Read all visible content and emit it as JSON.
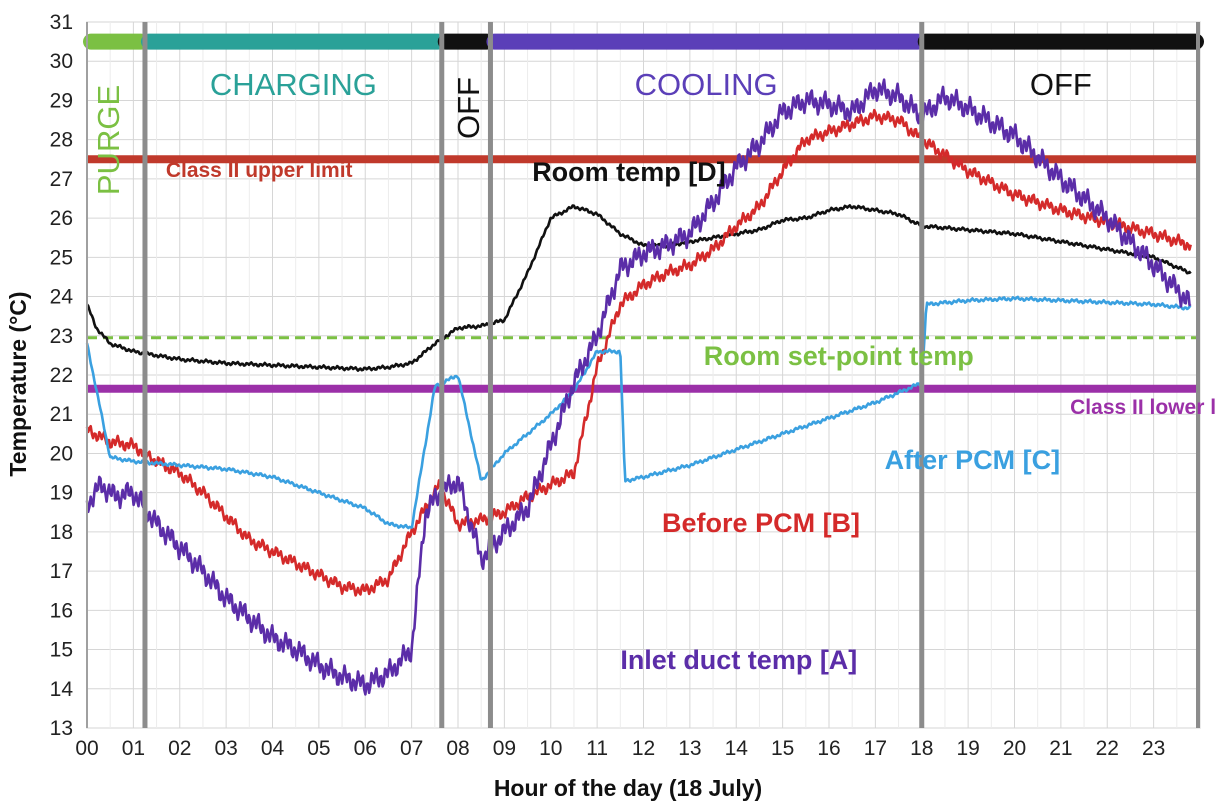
{
  "chart_data": {
    "type": "line",
    "title": "",
    "xlabel": "Hour of the day (18 July)",
    "ylabel": "Temperature (°C)",
    "xlim": [
      0,
      24
    ],
    "ylim": [
      13,
      31
    ],
    "x_tick_labels": [
      "00",
      "01",
      "02",
      "03",
      "04",
      "05",
      "06",
      "07",
      "08",
      "09",
      "10",
      "11",
      "12",
      "13",
      "14",
      "15",
      "16",
      "17",
      "18",
      "19",
      "20",
      "21",
      "22",
      "23"
    ],
    "y_ticks": [
      13,
      14,
      15,
      16,
      17,
      18,
      19,
      20,
      21,
      22,
      23,
      24,
      25,
      26,
      27,
      28,
      29,
      30,
      31
    ],
    "grid": true,
    "phases": [
      {
        "label": "PURGE",
        "start": 0.0,
        "end": 1.25,
        "color": "#7bc043",
        "vertical": true
      },
      {
        "label": "CHARGING",
        "start": 1.25,
        "end": 7.65,
        "color": "#2aa198",
        "vertical": false
      },
      {
        "label": "OFF",
        "start": 7.65,
        "end": 8.7,
        "color": "#111111",
        "vertical": true
      },
      {
        "label": "COOLING",
        "start": 8.7,
        "end": 18.0,
        "color": "#5b3fb8",
        "vertical": false
      },
      {
        "label": "OFF",
        "start": 18.0,
        "end": 24.0,
        "color": "#111111",
        "vertical": false
      }
    ],
    "phase_dividers": [
      1.25,
      7.65,
      8.7,
      18.0
    ],
    "reference_lines": [
      {
        "label": "Class II upper limit",
        "y": 27.5,
        "color": "#c0392b",
        "style": "solid"
      },
      {
        "label": "Room set-point temp",
        "y": 22.95,
        "color": "#7bc043",
        "style": "dashed"
      },
      {
        "label": "Class II lower limit",
        "y": 21.65,
        "color": "#9b30a8",
        "style": "solid"
      }
    ],
    "series": [
      {
        "name": "Room temp [D]",
        "color": "#111111",
        "x": [
          0,
          0.2,
          0.5,
          1,
          1.5,
          2,
          3,
          4,
          5,
          6,
          6.5,
          7,
          7.5,
          8,
          8.5,
          9,
          9.5,
          10,
          10.5,
          11,
          11.5,
          12,
          12.5,
          13,
          13.5,
          14,
          14.5,
          15,
          15.5,
          16,
          16.5,
          17,
          17.5,
          18,
          19,
          20,
          21,
          22,
          23,
          23.8
        ],
        "values": [
          23.8,
          23.2,
          22.8,
          22.6,
          22.5,
          22.4,
          22.3,
          22.25,
          22.2,
          22.15,
          22.2,
          22.3,
          22.8,
          23.2,
          23.25,
          23.4,
          24.6,
          26.0,
          26.3,
          26.1,
          25.6,
          25.3,
          25.3,
          25.4,
          25.5,
          25.6,
          25.7,
          25.95,
          26.0,
          26.2,
          26.3,
          26.2,
          26.1,
          25.8,
          25.7,
          25.6,
          25.4,
          25.2,
          25.0,
          24.6
        ]
      },
      {
        "name": "Before PCM [B]",
        "color": "#d42a2a",
        "x": [
          0,
          0.5,
          1,
          1.5,
          2,
          2.5,
          3,
          3.5,
          4,
          4.5,
          5,
          5.5,
          6,
          6.5,
          7,
          7.6,
          8,
          8.5,
          9,
          9.5,
          10,
          10.5,
          11,
          11.5,
          12,
          12.5,
          13,
          13.5,
          14,
          14.5,
          15,
          15.5,
          16,
          16.5,
          17,
          17.5,
          18,
          19,
          20,
          21,
          22,
          23,
          23.8
        ],
        "values": [
          20.6,
          20.3,
          20.2,
          19.8,
          19.5,
          19.0,
          18.4,
          17.8,
          17.5,
          17.2,
          16.9,
          16.6,
          16.5,
          16.8,
          18.0,
          19.2,
          18.2,
          18.3,
          18.5,
          18.9,
          19.2,
          19.5,
          22.2,
          23.8,
          24.3,
          24.6,
          24.8,
          25.2,
          25.8,
          26.3,
          27.2,
          28.0,
          28.2,
          28.4,
          28.6,
          28.5,
          28.0,
          27.2,
          26.6,
          26.2,
          25.9,
          25.6,
          25.3
        ]
      },
      {
        "name": "After PCM [C]",
        "color": "#3aa0e0",
        "x": [
          0,
          0.5,
          1,
          1.5,
          2,
          3,
          4,
          5,
          6,
          6.5,
          7,
          7.5,
          8,
          8.5,
          9,
          9.5,
          10,
          10.5,
          11,
          11.5,
          11.6,
          12,
          13,
          14,
          15,
          16,
          17,
          18,
          18.1,
          19,
          20,
          21,
          22,
          23,
          23.8
        ],
        "values": [
          22.8,
          19.9,
          19.8,
          19.75,
          19.7,
          19.6,
          19.4,
          19.0,
          18.6,
          18.2,
          18.1,
          21.7,
          22.0,
          19.3,
          20.0,
          20.5,
          21.0,
          21.6,
          22.6,
          22.6,
          19.3,
          19.4,
          19.7,
          20.1,
          20.5,
          20.9,
          21.3,
          21.8,
          23.8,
          23.9,
          23.95,
          23.9,
          23.85,
          23.8,
          23.7
        ]
      },
      {
        "name": "Inlet duct temp [A]",
        "color": "#5b2da8",
        "x": [
          0,
          0.3,
          0.6,
          1,
          1.5,
          2,
          2.5,
          3,
          3.5,
          4,
          4.5,
          5,
          5.5,
          6,
          6.5,
          7,
          7.3,
          7.6,
          8,
          8.5,
          9,
          9.5,
          10,
          10.5,
          11,
          11.5,
          12,
          12.5,
          13,
          13.5,
          14,
          14.5,
          15,
          15.5,
          16,
          16.5,
          17,
          17.5,
          18,
          18.5,
          19,
          20,
          21,
          22,
          23,
          23.8
        ],
        "values": [
          18.7,
          19.2,
          18.9,
          19.0,
          18.2,
          17.6,
          17.0,
          16.3,
          15.8,
          15.3,
          15.0,
          14.6,
          14.3,
          14.1,
          14.4,
          15.0,
          18.5,
          19.0,
          19.3,
          17.3,
          18.0,
          18.6,
          20.2,
          21.8,
          23.0,
          24.7,
          25.1,
          25.3,
          25.6,
          26.4,
          27.3,
          27.9,
          28.7,
          29.0,
          28.9,
          28.7,
          29.3,
          29.1,
          28.6,
          29.1,
          28.8,
          28.1,
          27.0,
          26.0,
          24.8,
          23.8
        ]
      }
    ],
    "annotations": [
      {
        "text": "Class II upper limit",
        "x": 1.7,
        "y": 27.05,
        "color": "#c0392b"
      },
      {
        "text": "Room temp [D]",
        "x": 9.6,
        "y": 26.95,
        "color": "#111111"
      },
      {
        "text": "Room set-point temp",
        "x": 13.3,
        "y": 22.25,
        "color": "#7bc043"
      },
      {
        "text": "Class II lower limit",
        "x": 21.2,
        "y": 21.0,
        "color": "#9b30a8"
      },
      {
        "text": "After PCM [C]",
        "x": 17.2,
        "y": 19.6,
        "color": "#3aa0e0"
      },
      {
        "text": "Before PCM [B]",
        "x": 12.4,
        "y": 18.0,
        "color": "#d42a2a"
      },
      {
        "text": "Inlet duct temp [A]",
        "x": 11.5,
        "y": 14.5,
        "color": "#5b2da8"
      }
    ]
  }
}
